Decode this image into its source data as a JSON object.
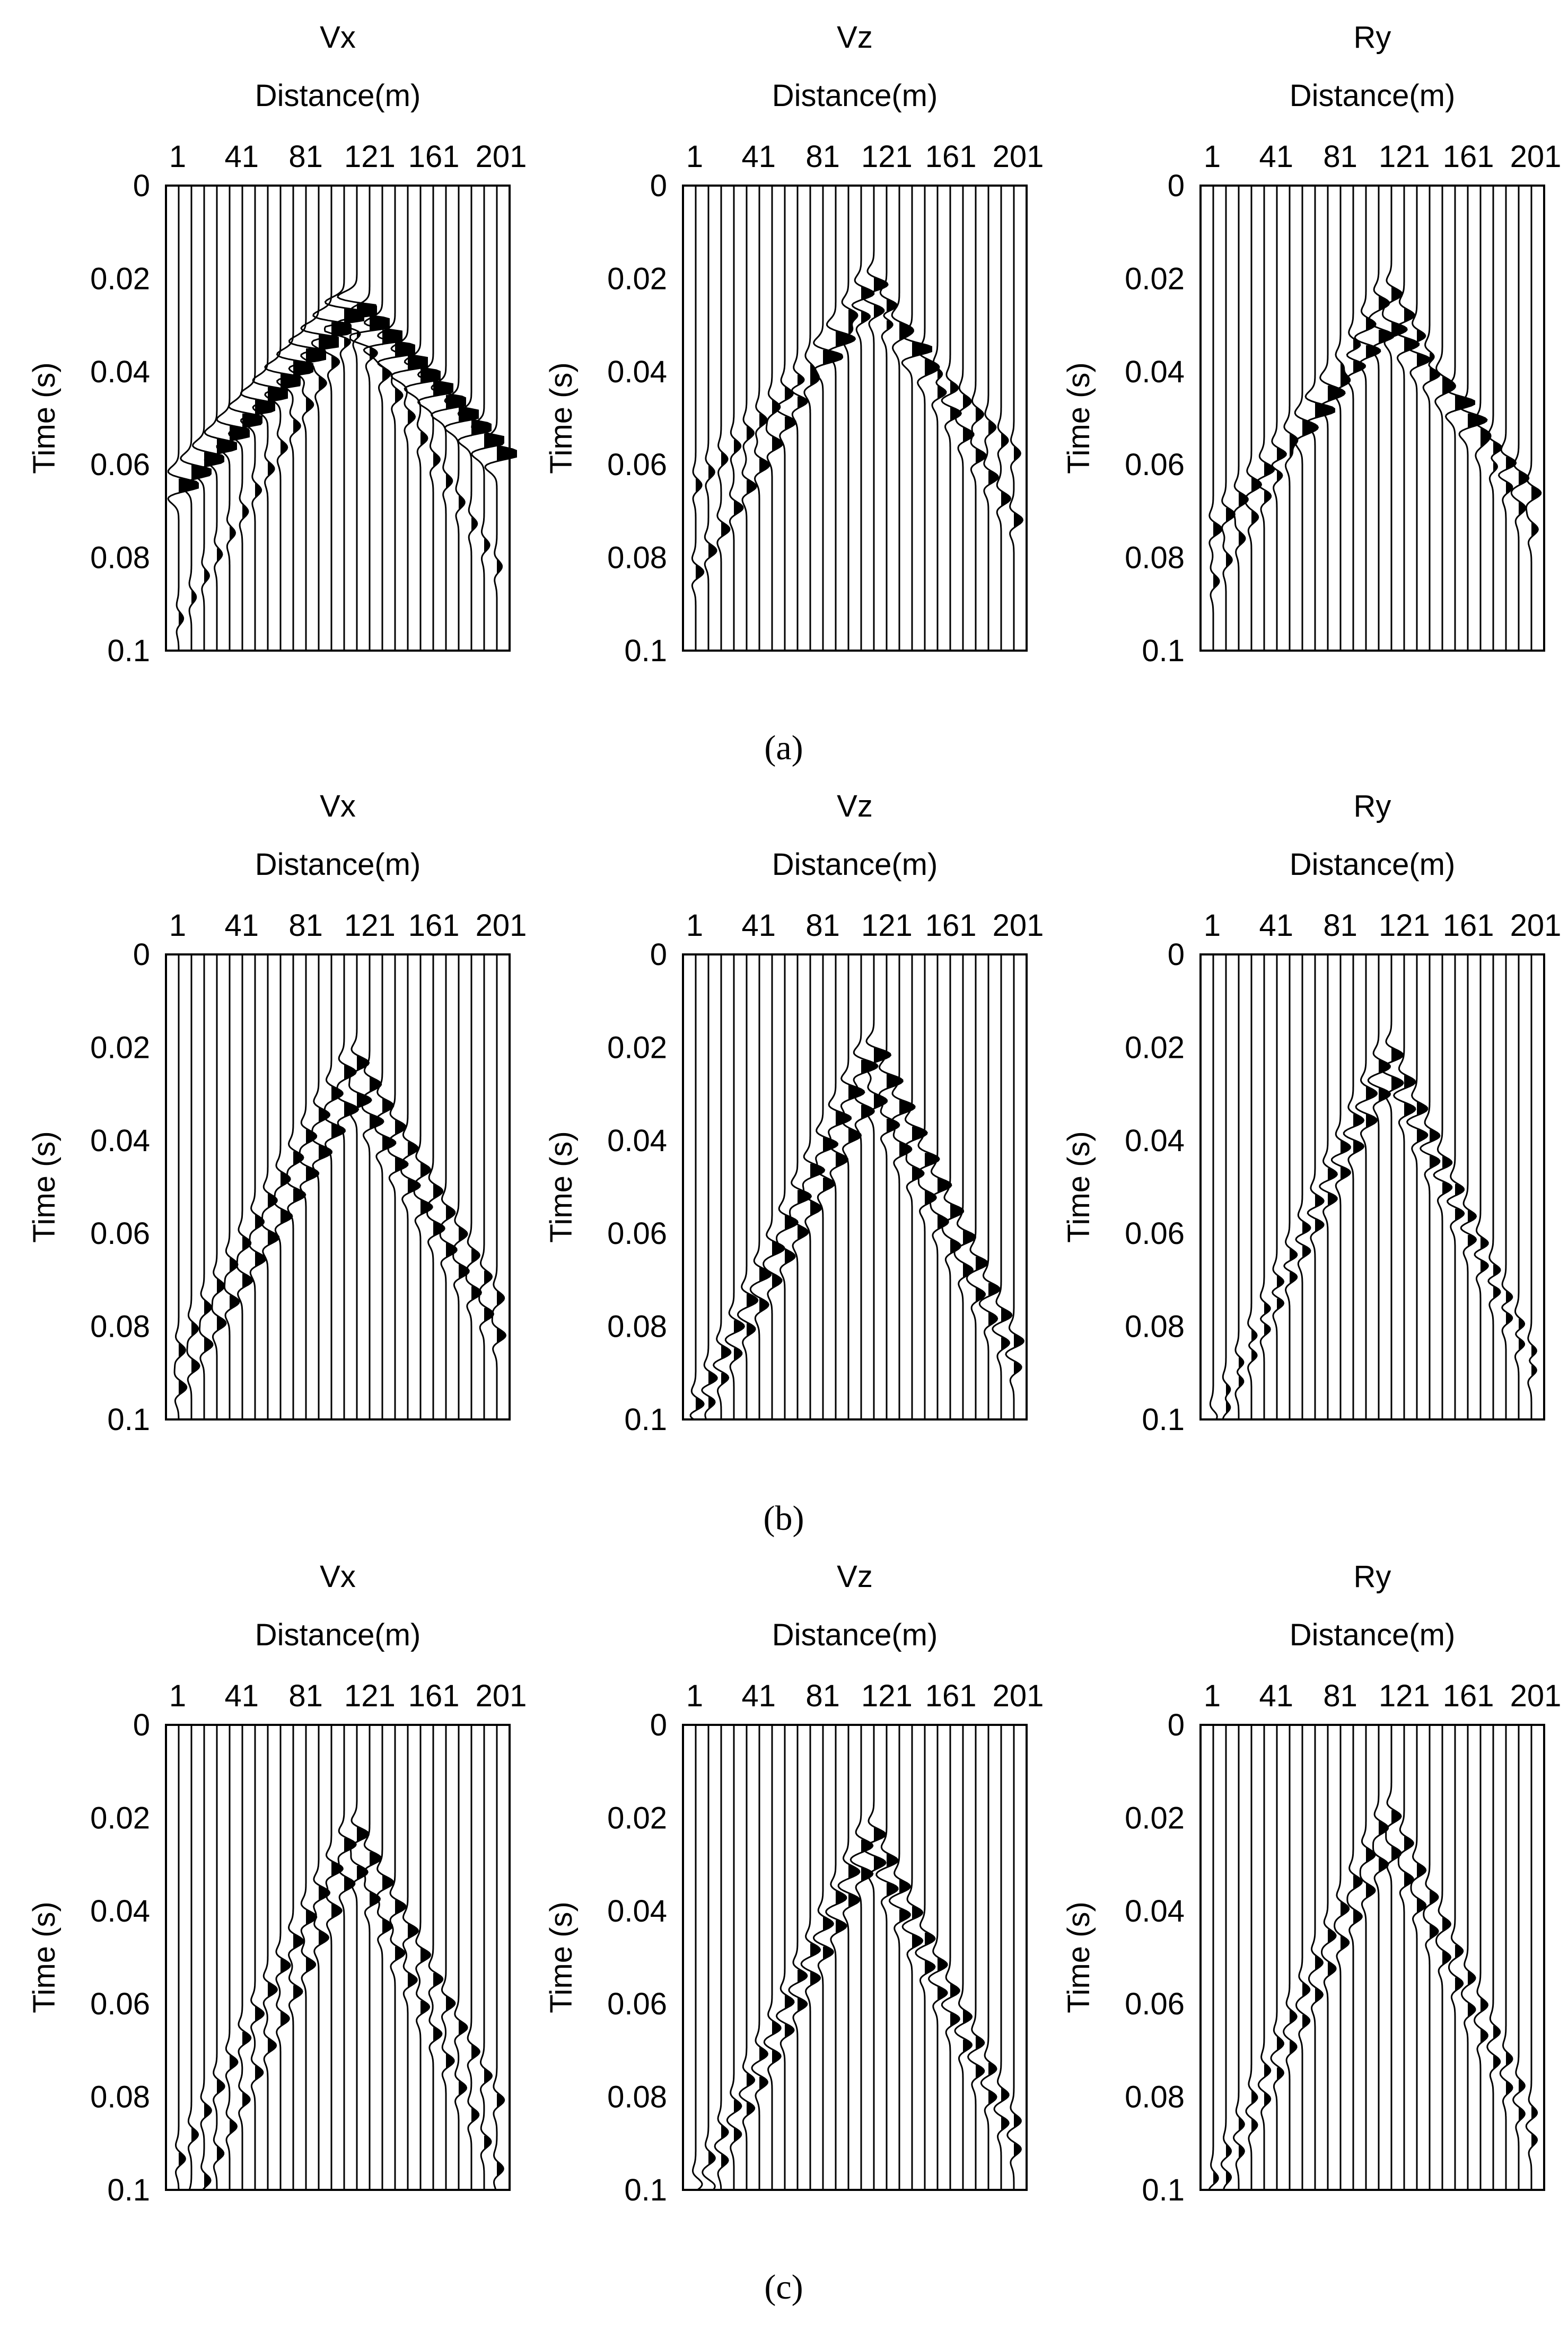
{
  "figure": {
    "captions": [
      "(a)",
      "(b)",
      "(c)"
    ],
    "colors": {
      "trace": "#000000",
      "background": "#ffffff"
    }
  },
  "chart_data": [
    {
      "type": "seismogram",
      "id": "a-vx",
      "row": 0,
      "col": 0,
      "title": "Vx",
      "xlabel": "Distance(m)",
      "ylabel": "Time (s)",
      "x_ticks": [
        "1",
        "41",
        "81",
        "121",
        "161",
        "201"
      ],
      "y_ticks": [
        "0",
        "0.02",
        "0.04",
        "0.06",
        "0.08",
        "0.1"
      ],
      "xlim": [
        1,
        201
      ],
      "ylim": [
        0,
        0.1
      ],
      "trace_count": 28,
      "source_position_m": 110,
      "events": [
        {
          "name": "left-arm",
          "apex_t": 0.026,
          "slope_s_per_trace": 0.0028,
          "amplitude": 1.8,
          "filled": true
        },
        {
          "name": "right-arm",
          "apex_t": 0.026,
          "slope_s_per_trace": 0.0028,
          "amplitude": 1.8,
          "filled": true
        },
        {
          "name": "secondary",
          "apex_t": 0.03,
          "slope_s_per_trace": 0.0046,
          "amplitude": 0.7,
          "filled": false
        }
      ]
    },
    {
      "type": "seismogram",
      "id": "a-vz",
      "row": 0,
      "col": 1,
      "title": "Vz",
      "xlabel": "Distance(m)",
      "ylabel": "Time (s)",
      "x_ticks": [
        "1",
        "41",
        "81",
        "121",
        "161",
        "201"
      ],
      "y_ticks": [
        "0",
        "0.02",
        "0.04",
        "0.06",
        "0.08",
        "0.1"
      ],
      "xlim": [
        1,
        201
      ],
      "ylim": [
        0,
        0.1
      ],
      "trace_count": 28,
      "source_position_m": 110,
      "events": [
        {
          "name": "p-arrival",
          "apex_t": 0.02,
          "slope_s_per_trace": 0.0046,
          "amplitude": 1.2,
          "filled": true
        },
        {
          "name": "s-arrival",
          "apex_t": 0.026,
          "slope_s_per_trace": 0.0028,
          "amplitude": 0.9,
          "filled": true
        }
      ]
    },
    {
      "type": "seismogram",
      "id": "a-ry",
      "row": 0,
      "col": 2,
      "title": "Ry",
      "xlabel": "Distance(m)",
      "ylabel": "Time (s)",
      "x_ticks": [
        "1",
        "41",
        "81",
        "121",
        "161",
        "201"
      ],
      "y_ticks": [
        "0",
        "0.02",
        "0.04",
        "0.06",
        "0.08",
        "0.1"
      ],
      "xlim": [
        1,
        201
      ],
      "ylim": [
        0,
        0.1
      ],
      "trace_count": 28,
      "source_position_m": 110,
      "events": [
        {
          "name": "p-arrival",
          "apex_t": 0.022,
          "slope_s_per_trace": 0.0046,
          "amplitude": 0.9,
          "filled": true
        },
        {
          "name": "s-arrival",
          "apex_t": 0.03,
          "slope_s_per_trace": 0.0032,
          "amplitude": 1.3,
          "filled": true
        }
      ]
    },
    {
      "type": "seismogram",
      "id": "b-vx",
      "row": 1,
      "col": 0,
      "title": "Vx",
      "xlabel": "Distance(m)",
      "ylabel": "Time (s)",
      "x_ticks": [
        "1",
        "41",
        "81",
        "121",
        "161",
        "201"
      ],
      "y_ticks": [
        "0",
        "0.02",
        "0.04",
        "0.06",
        "0.08",
        "0.1"
      ],
      "xlim": [
        1,
        201
      ],
      "ylim": [
        0,
        0.1
      ],
      "trace_count": 28,
      "source_position_m": 110,
      "events": [
        {
          "name": "p-arrival",
          "apex_t": 0.022,
          "slope_s_per_trace": 0.0046,
          "amplitude": 1.0,
          "filled": true
        },
        {
          "name": "s-arrival",
          "apex_t": 0.03,
          "slope_s_per_trace": 0.0046,
          "amplitude": 1.2,
          "filled": true
        }
      ]
    },
    {
      "type": "seismogram",
      "id": "b-vz",
      "row": 1,
      "col": 1,
      "title": "Vz",
      "xlabel": "Distance(m)",
      "ylabel": "Time (s)",
      "x_ticks": [
        "1",
        "41",
        "81",
        "121",
        "161",
        "201"
      ],
      "y_ticks": [
        "0",
        "0.02",
        "0.04",
        "0.06",
        "0.08",
        "0.1"
      ],
      "xlim": [
        1,
        201
      ],
      "ylim": [
        0,
        0.1
      ],
      "trace_count": 28,
      "source_position_m": 110,
      "events": [
        {
          "name": "p-arrival",
          "apex_t": 0.02,
          "slope_s_per_trace": 0.0056,
          "amplitude": 1.4,
          "filled": true
        },
        {
          "name": "s-arrival",
          "apex_t": 0.03,
          "slope_s_per_trace": 0.0052,
          "amplitude": 1.1,
          "filled": true
        }
      ]
    },
    {
      "type": "seismogram",
      "id": "b-ry",
      "row": 1,
      "col": 2,
      "title": "Ry",
      "xlabel": "Distance(m)",
      "ylabel": "Time (s)",
      "x_ticks": [
        "1",
        "41",
        "81",
        "121",
        "161",
        "201"
      ],
      "y_ticks": [
        "0",
        "0.02",
        "0.04",
        "0.06",
        "0.08",
        "0.1"
      ],
      "xlim": [
        1,
        201
      ],
      "ylim": [
        0,
        0.1
      ],
      "trace_count": 28,
      "source_position_m": 110,
      "events": [
        {
          "name": "p-arrival",
          "apex_t": 0.02,
          "slope_s_per_trace": 0.0058,
          "amplitude": 1.0,
          "filled": true
        },
        {
          "name": "s-arrival",
          "apex_t": 0.026,
          "slope_s_per_trace": 0.0056,
          "amplitude": 1.0,
          "filled": true
        }
      ]
    },
    {
      "type": "seismogram",
      "id": "c-vx",
      "row": 2,
      "col": 0,
      "title": "Vx",
      "xlabel": "Distance(m)",
      "ylabel": "Time (s)",
      "x_ticks": [
        "1",
        "41",
        "81",
        "121",
        "161",
        "201"
      ],
      "y_ticks": [
        "0",
        "0.02",
        "0.04",
        "0.06",
        "0.08",
        "0.1"
      ],
      "xlim": [
        1,
        201
      ],
      "ylim": [
        0,
        0.1
      ],
      "trace_count": 28,
      "source_position_m": 110,
      "events": [
        {
          "name": "p-arrival",
          "apex_t": 0.022,
          "slope_s_per_trace": 0.0052,
          "amplitude": 1.0,
          "filled": true
        },
        {
          "name": "s-arrival",
          "apex_t": 0.03,
          "slope_s_per_trace": 0.0058,
          "amplitude": 0.9,
          "filled": true
        }
      ]
    },
    {
      "type": "seismogram",
      "id": "c-vz",
      "row": 2,
      "col": 1,
      "title": "Vz",
      "xlabel": "Distance(m)",
      "ylabel": "Time (s)",
      "x_ticks": [
        "1",
        "41",
        "81",
        "121",
        "161",
        "201"
      ],
      "y_ticks": [
        "0",
        "0.02",
        "0.04",
        "0.06",
        "0.08",
        "0.1"
      ],
      "xlim": [
        1,
        201
      ],
      "ylim": [
        0,
        0.1
      ],
      "trace_count": 28,
      "source_position_m": 110,
      "events": [
        {
          "name": "p-arrival",
          "apex_t": 0.022,
          "slope_s_per_trace": 0.0056,
          "amplitude": 1.0,
          "filled": true
        },
        {
          "name": "s-arrival",
          "apex_t": 0.028,
          "slope_s_per_trace": 0.0056,
          "amplitude": 1.0,
          "filled": true
        }
      ]
    },
    {
      "type": "seismogram",
      "id": "c-ry",
      "row": 2,
      "col": 2,
      "title": "Ry",
      "xlabel": "Distance(m)",
      "ylabel": "Time (s)",
      "x_ticks": [
        "1",
        "41",
        "81",
        "121",
        "161",
        "201"
      ],
      "y_ticks": [
        "0",
        "0.02",
        "0.04",
        "0.06",
        "0.08",
        "0.1"
      ],
      "xlim": [
        1,
        201
      ],
      "ylim": [
        0,
        0.1
      ],
      "trace_count": 28,
      "source_position_m": 110,
      "events": [
        {
          "name": "p-arrival",
          "apex_t": 0.018,
          "slope_s_per_trace": 0.0058,
          "amplitude": 0.8,
          "filled": true
        },
        {
          "name": "s-arrival",
          "apex_t": 0.026,
          "slope_s_per_trace": 0.0056,
          "amplitude": 0.8,
          "filled": true
        }
      ]
    }
  ]
}
